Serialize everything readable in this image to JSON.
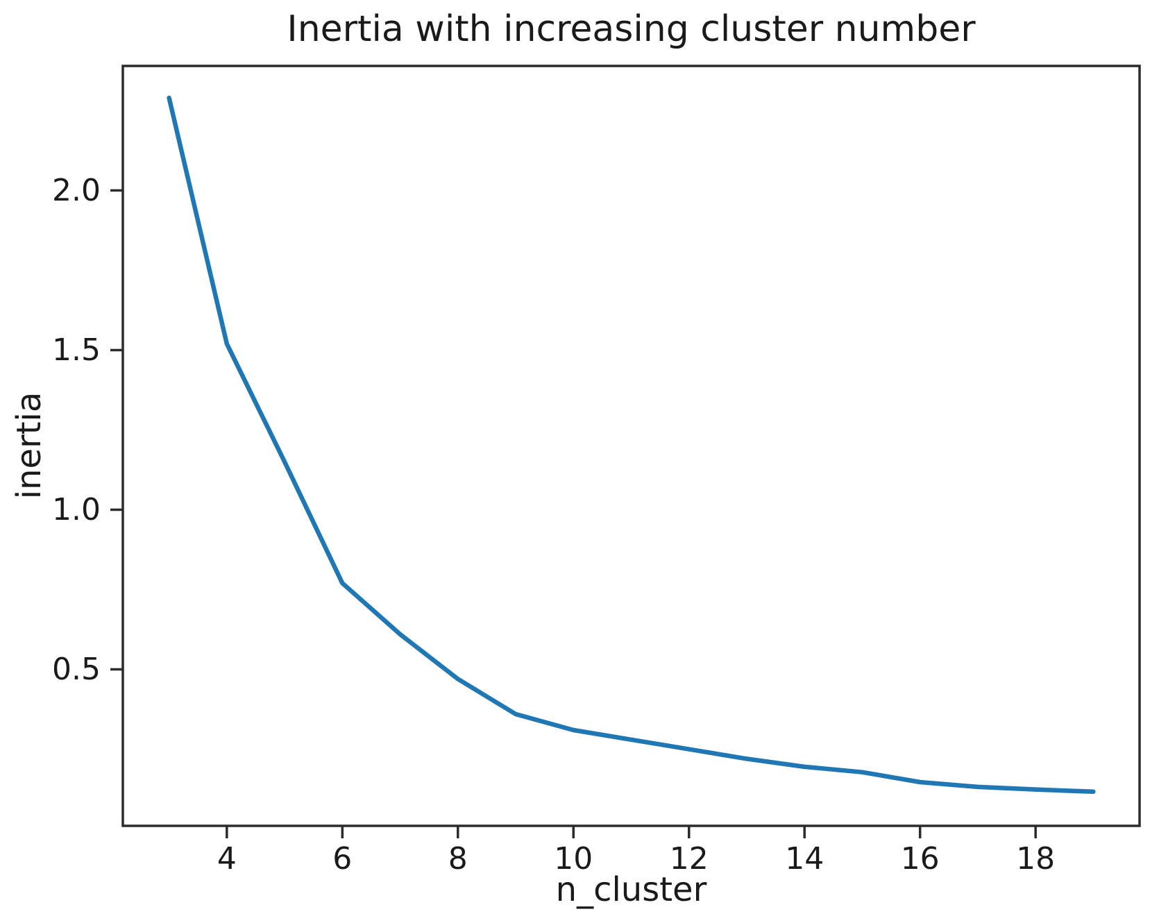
{
  "chart_data": {
    "type": "line",
    "title": "Inertia with increasing cluster number",
    "xlabel": "n_cluster",
    "ylabel": "inertia",
    "x": [
      3,
      4,
      5,
      6,
      7,
      8,
      9,
      10,
      11,
      12,
      13,
      14,
      15,
      16,
      17,
      18,
      19
    ],
    "y": [
      2.29,
      1.52,
      1.15,
      0.77,
      0.61,
      0.47,
      0.36,
      0.31,
      0.28,
      0.25,
      0.22,
      0.195,
      0.178,
      0.147,
      0.132,
      0.124,
      0.117
    ],
    "xlim": [
      2.2,
      19.8
    ],
    "ylim": [
      0.01,
      2.39
    ],
    "x_ticks": [
      4,
      6,
      8,
      10,
      12,
      14,
      16,
      18
    ],
    "x_tick_labels": [
      "4",
      "6",
      "8",
      "10",
      "12",
      "14",
      "16",
      "18"
    ],
    "y_ticks": [
      0.5,
      1.0,
      1.5,
      2.0
    ],
    "y_tick_labels": [
      "0.5",
      "1.0",
      "1.5",
      "2.0"
    ],
    "grid": false,
    "legend": "none",
    "line_color": "#1f77b4",
    "line_width": 6.5,
    "axis_color": "#2b2b2b",
    "text_color": "#1a1a1a"
  }
}
